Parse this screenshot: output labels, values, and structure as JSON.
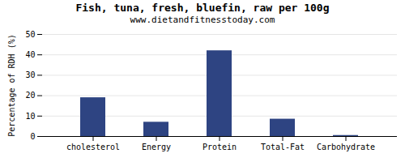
{
  "chart_data": {
    "type": "bar",
    "title": "Fish, tuna, fresh, bluefin, raw per 100g",
    "subtitle": "www.dietandfitnesstoday.com",
    "categories": [
      "cholesterol",
      "Energy",
      "Protein",
      "Total-Fat",
      "Carbohydrate"
    ],
    "values": [
      19,
      7,
      42,
      8.5,
      0.5
    ],
    "color": "#2e4482",
    "ylabel": "Percentage of RDH (%)",
    "ylim": [
      0,
      50
    ],
    "yticks": [
      0,
      10,
      20,
      30,
      40,
      50
    ],
    "grid": true
  }
}
